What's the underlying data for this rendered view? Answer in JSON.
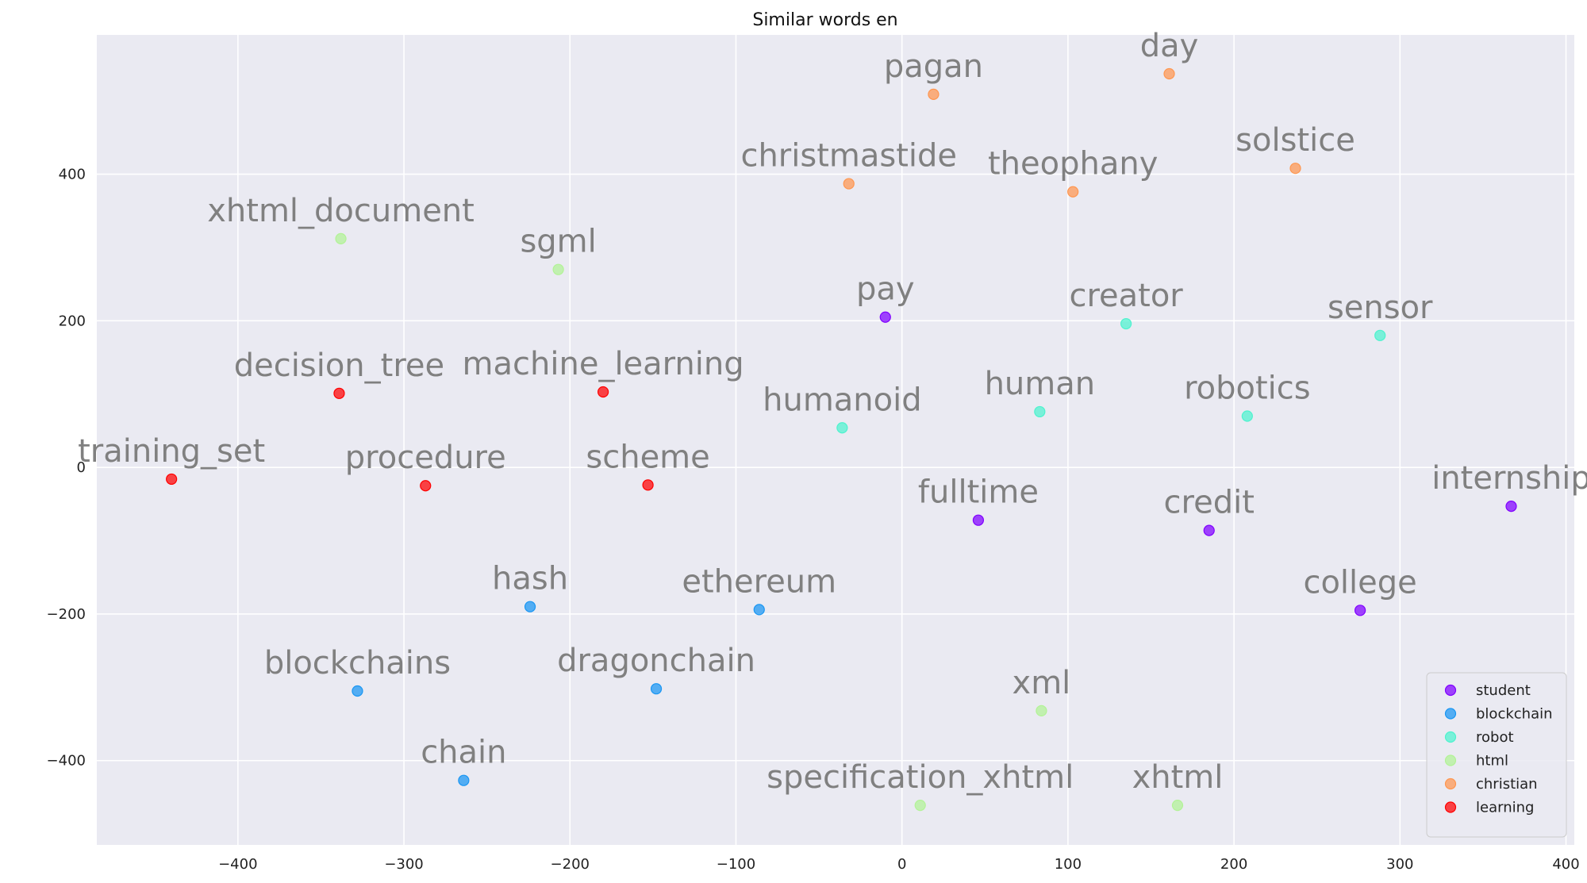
{
  "chart_data": {
    "type": "scatter",
    "title": "Similar words en",
    "xlabel": "",
    "ylabel": "",
    "xlim": [
      -485,
      405
    ],
    "ylim": [
      -515,
      590
    ],
    "xticks": [
      -400,
      -300,
      -200,
      -100,
      0,
      100,
      200,
      300,
      400
    ],
    "yticks": [
      -400,
      -200,
      0,
      200,
      400
    ],
    "xtick_labels": [
      "−400",
      "−300",
      "−200",
      "−100",
      "0",
      "100",
      "200",
      "300",
      "400"
    ],
    "ytick_labels": [
      "−400",
      "−200",
      "0",
      "200",
      "400"
    ],
    "grid": true,
    "legend_position": "bottom-right",
    "series": [
      {
        "name": "student",
        "color": "#8000ff",
        "points": [
          {
            "label": "pay",
            "x": -10,
            "y": 205
          },
          {
            "label": "fulltime",
            "x": 46,
            "y": -72
          },
          {
            "label": "credit",
            "x": 185,
            "y": -86
          },
          {
            "label": "internship",
            "x": 367,
            "y": -53
          },
          {
            "label": "college",
            "x": 276,
            "y": -195
          }
        ]
      },
      {
        "name": "blockchain",
        "color": "#1996f3",
        "points": [
          {
            "label": "hash",
            "x": -224,
            "y": -190
          },
          {
            "label": "ethereum",
            "x": -86,
            "y": -194
          },
          {
            "label": "blockchains",
            "x": -328,
            "y": -305
          },
          {
            "label": "dragonchain",
            "x": -148,
            "y": -302
          },
          {
            "label": "chain",
            "x": -264,
            "y": -427
          }
        ]
      },
      {
        "name": "robot",
        "color": "#4df3ce",
        "points": [
          {
            "label": "creator",
            "x": 135,
            "y": 196
          },
          {
            "label": "sensor",
            "x": 288,
            "y": 180
          },
          {
            "label": "humanoid",
            "x": -36,
            "y": 54
          },
          {
            "label": "human",
            "x": 83,
            "y": 76
          },
          {
            "label": "robotics",
            "x": 208,
            "y": 70
          }
        ]
      },
      {
        "name": "html",
        "color": "#b2f396",
        "points": [
          {
            "label": "xhtml_document",
            "x": -338,
            "y": 312
          },
          {
            "label": "sgml",
            "x": -207,
            "y": 270
          },
          {
            "label": "xml",
            "x": 84,
            "y": -332
          },
          {
            "label": "specification_xhtml",
            "x": 11,
            "y": -461
          },
          {
            "label": "xhtml",
            "x": 166,
            "y": -461
          }
        ]
      },
      {
        "name": "christian",
        "color": "#ff964f",
        "points": [
          {
            "label": "day",
            "x": 161,
            "y": 537
          },
          {
            "label": "pagan",
            "x": 19,
            "y": 509
          },
          {
            "label": "christmastide",
            "x": -32,
            "y": 387
          },
          {
            "label": "theophany",
            "x": 103,
            "y": 376
          },
          {
            "label": "solstice",
            "x": 237,
            "y": 408
          }
        ]
      },
      {
        "name": "learning",
        "color": "#ff0000",
        "points": [
          {
            "label": "training_set",
            "x": -440,
            "y": -16
          },
          {
            "label": "decision_tree",
            "x": -339,
            "y": 101
          },
          {
            "label": "machine_learning",
            "x": -180,
            "y": 103
          },
          {
            "label": "procedure",
            "x": -287,
            "y": -25
          },
          {
            "label": "scheme",
            "x": -153,
            "y": -24
          }
        ]
      }
    ]
  }
}
